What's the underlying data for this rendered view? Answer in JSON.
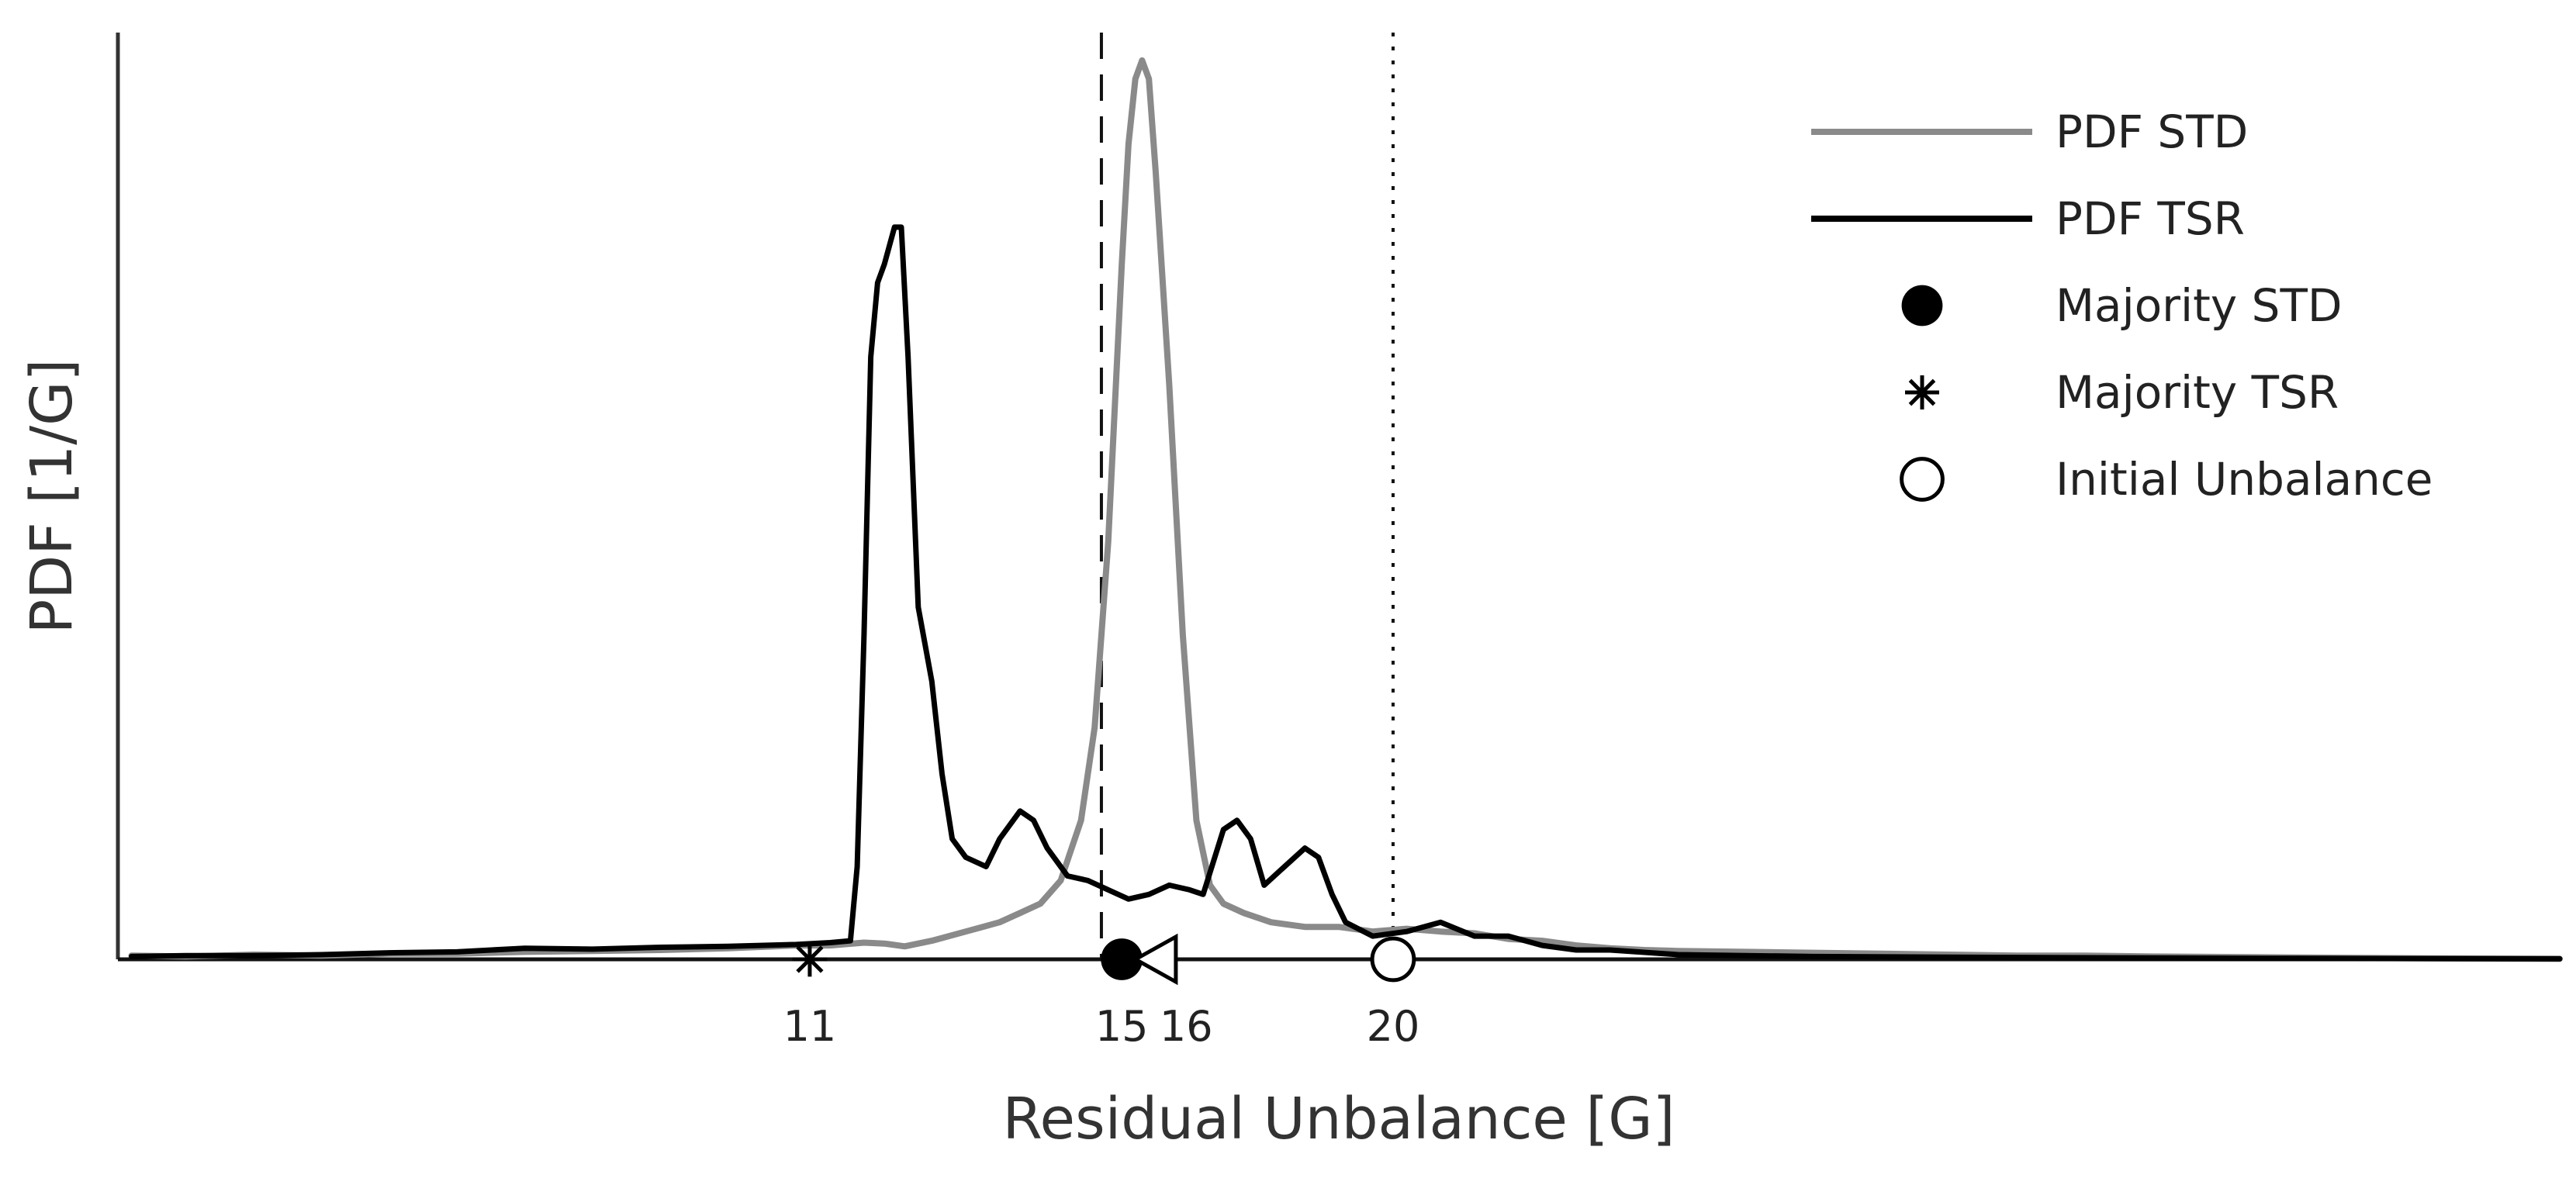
{
  "chart_data": {
    "type": "line",
    "title": "",
    "xlabel": "Residual Unbalance [G]",
    "ylabel": "PDF [1/G]",
    "xlim": [
      0,
      36
    ],
    "ylim": [
      0,
      1.0
    ],
    "grid": false,
    "legend_position": "top-right",
    "colors": {
      "std": "#8a8a8a",
      "tsr": "#000000"
    },
    "x_ticks": [
      11,
      15,
      16,
      20
    ],
    "series": [
      {
        "name": "PDF STD",
        "points": [
          [
            0.2,
            0.004
          ],
          [
            1,
            0.003
          ],
          [
            2,
            0.005
          ],
          [
            3,
            0.004
          ],
          [
            4,
            0.006
          ],
          [
            5,
            0.006
          ],
          [
            6,
            0.008
          ],
          [
            7,
            0.009
          ],
          [
            8,
            0.01
          ],
          [
            9,
            0.012
          ],
          [
            10,
            0.015
          ],
          [
            10.5,
            0.015
          ],
          [
            11,
            0.018
          ],
          [
            11.3,
            0.017
          ],
          [
            11.6,
            0.014
          ],
          [
            12,
            0.02
          ],
          [
            12.5,
            0.03
          ],
          [
            13,
            0.04
          ],
          [
            13.3,
            0.05
          ],
          [
            13.6,
            0.06
          ],
          [
            13.9,
            0.085
          ],
          [
            14.2,
            0.15
          ],
          [
            14.4,
            0.25
          ],
          [
            14.6,
            0.45
          ],
          [
            14.8,
            0.75
          ],
          [
            14.9,
            0.88
          ],
          [
            15.0,
            0.95
          ],
          [
            15.1,
            0.97
          ],
          [
            15.2,
            0.95
          ],
          [
            15.3,
            0.85
          ],
          [
            15.5,
            0.62
          ],
          [
            15.7,
            0.35
          ],
          [
            15.9,
            0.15
          ],
          [
            16.1,
            0.08
          ],
          [
            16.3,
            0.06
          ],
          [
            16.6,
            0.05
          ],
          [
            17,
            0.04
          ],
          [
            17.5,
            0.035
          ],
          [
            18,
            0.035
          ],
          [
            18.5,
            0.03
          ],
          [
            19,
            0.033
          ],
          [
            19.5,
            0.03
          ],
          [
            20,
            0.028
          ],
          [
            20.5,
            0.022
          ],
          [
            21,
            0.02
          ],
          [
            21.5,
            0.015
          ],
          [
            22,
            0.012
          ],
          [
            22.5,
            0.01
          ],
          [
            23,
            0.009
          ],
          [
            24,
            0.008
          ],
          [
            25,
            0.007
          ],
          [
            26,
            0.006
          ],
          [
            27,
            0.005
          ],
          [
            28,
            0.004
          ],
          [
            29,
            0.004
          ],
          [
            30,
            0.003
          ],
          [
            32,
            0.002
          ],
          [
            34,
            0.001
          ],
          [
            36,
            0.0005
          ]
        ]
      },
      {
        "name": "PDF TSR",
        "points": [
          [
            0.2,
            0.003
          ],
          [
            1,
            0.004
          ],
          [
            2,
            0.004
          ],
          [
            3,
            0.005
          ],
          [
            4,
            0.007
          ],
          [
            5,
            0.008
          ],
          [
            6,
            0.012
          ],
          [
            7,
            0.011
          ],
          [
            8,
            0.013
          ],
          [
            9,
            0.014
          ],
          [
            10,
            0.016
          ],
          [
            10.5,
            0.018
          ],
          [
            10.8,
            0.02
          ],
          [
            10.9,
            0.1
          ],
          [
            11.0,
            0.35
          ],
          [
            11.1,
            0.65
          ],
          [
            11.2,
            0.73
          ],
          [
            11.3,
            0.75
          ],
          [
            11.45,
            0.79
          ],
          [
            11.55,
            0.79
          ],
          [
            11.65,
            0.65
          ],
          [
            11.8,
            0.38
          ],
          [
            12.0,
            0.3
          ],
          [
            12.15,
            0.2
          ],
          [
            12.3,
            0.13
          ],
          [
            12.5,
            0.11
          ],
          [
            12.8,
            0.1
          ],
          [
            13.0,
            0.13
          ],
          [
            13.3,
            0.16
          ],
          [
            13.5,
            0.15
          ],
          [
            13.7,
            0.12
          ],
          [
            14.0,
            0.09
          ],
          [
            14.3,
            0.085
          ],
          [
            14.6,
            0.075
          ],
          [
            14.9,
            0.065
          ],
          [
            15.2,
            0.07
          ],
          [
            15.5,
            0.08
          ],
          [
            15.8,
            0.075
          ],
          [
            16.0,
            0.07
          ],
          [
            16.3,
            0.14
          ],
          [
            16.5,
            0.15
          ],
          [
            16.7,
            0.13
          ],
          [
            16.9,
            0.08
          ],
          [
            17.2,
            0.1
          ],
          [
            17.5,
            0.12
          ],
          [
            17.7,
            0.11
          ],
          [
            17.9,
            0.07
          ],
          [
            18.1,
            0.04
          ],
          [
            18.5,
            0.025
          ],
          [
            19,
            0.03
          ],
          [
            19.5,
            0.04
          ],
          [
            20,
            0.025
          ],
          [
            20.5,
            0.025
          ],
          [
            21,
            0.015
          ],
          [
            21.5,
            0.01
          ],
          [
            22,
            0.01
          ],
          [
            23,
            0.005
          ],
          [
            25,
            0.003
          ],
          [
            28,
            0.002
          ],
          [
            32,
            0.001
          ],
          [
            36,
            0.0005
          ]
        ]
      }
    ],
    "markers": [
      {
        "name": "Majority STD",
        "x": 14.8,
        "shape": "filled-circle"
      },
      {
        "name": "Majority TSR",
        "x": 10.2,
        "shape": "asterisk"
      },
      {
        "name": "Initial Unbalance",
        "x": 18.8,
        "shape": "open-circle"
      },
      {
        "name": "",
        "x": 15.3,
        "shape": "open-triangle-left"
      }
    ],
    "vlines": [
      {
        "x": 14.5,
        "style": "dashed"
      },
      {
        "x": 18.8,
        "style": "dotted"
      }
    ],
    "legend": [
      {
        "label": "PDF STD",
        "symbol": "gray-line"
      },
      {
        "label": "PDF TSR",
        "symbol": "black-line"
      },
      {
        "label": "Majority STD",
        "symbol": "filled-circle"
      },
      {
        "label": "Majority TSR",
        "symbol": "asterisk"
      },
      {
        "label": "Initial Unbalance",
        "symbol": "open-circle"
      }
    ]
  }
}
